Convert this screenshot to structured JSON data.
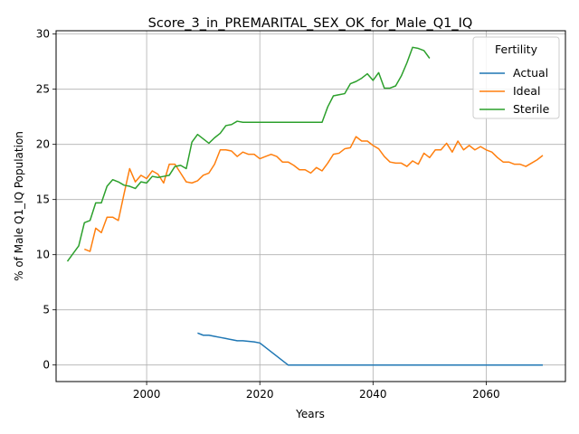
{
  "chart_data": {
    "type": "line",
    "title": "Score_3_in_PREMARITAL_SEX_OK_for_Male_Q1_IQ",
    "xlabel": "Years",
    "ylabel": "% of Male Q1_IQ Population",
    "xlim": [
      1984,
      2074
    ],
    "ylim": [
      -1.5,
      30.3
    ],
    "xticks": [
      2000,
      2020,
      2040,
      2060
    ],
    "yticks": [
      0,
      5,
      10,
      15,
      20,
      25,
      30
    ],
    "grid": true,
    "legend": {
      "title": "Fertility",
      "placement": "top-right"
    },
    "series": [
      {
        "name": "Actual",
        "color": "#1f77b4",
        "x": [
          2009,
          2010,
          2011,
          2012,
          2013,
          2014,
          2015,
          2016,
          2017,
          2018,
          2019,
          2020,
          2021,
          2022,
          2023,
          2024,
          2025,
          2030,
          2035,
          2040,
          2045,
          2050,
          2055,
          2060,
          2065,
          2070
        ],
        "y": [
          2.9,
          2.7,
          2.7,
          2.6,
          2.5,
          2.4,
          2.3,
          2.2,
          2.2,
          2.15,
          2.1,
          2.0,
          1.6,
          1.2,
          0.8,
          0.4,
          0.0,
          0.0,
          0.0,
          0.0,
          0.0,
          0.0,
          0.0,
          0.0,
          0.0,
          0.0
        ]
      },
      {
        "name": "Ideal",
        "color": "#ff7f0e",
        "x": [
          1989,
          1990,
          1991,
          1992,
          1993,
          1994,
          1995,
          1996,
          1997,
          1998,
          1999,
          2000,
          2001,
          2002,
          2003,
          2004,
          2005,
          2006,
          2007,
          2008,
          2009,
          2010,
          2011,
          2012,
          2013,
          2014,
          2015,
          2016,
          2017,
          2018,
          2019,
          2020,
          2021,
          2022,
          2023,
          2024,
          2025,
          2026,
          2027,
          2028,
          2029,
          2030,
          2031,
          2032,
          2033,
          2034,
          2035,
          2036,
          2037,
          2038,
          2039,
          2040,
          2041,
          2042,
          2043,
          2044,
          2045,
          2046,
          2047,
          2048,
          2049,
          2050,
          2051,
          2052,
          2053,
          2054,
          2055,
          2056,
          2057,
          2058,
          2059,
          2060,
          2061,
          2062,
          2063,
          2064,
          2065,
          2066,
          2067,
          2068,
          2069,
          2070
        ],
        "y": [
          10.5,
          10.3,
          12.4,
          12.0,
          13.4,
          13.4,
          13.1,
          15.5,
          17.8,
          16.6,
          17.2,
          16.9,
          17.6,
          17.3,
          16.5,
          18.2,
          18.2,
          17.4,
          16.6,
          16.5,
          16.7,
          17.2,
          17.4,
          18.2,
          19.5,
          19.5,
          19.4,
          18.9,
          19.3,
          19.1,
          19.1,
          18.7,
          18.9,
          19.1,
          18.9,
          18.4,
          18.4,
          18.1,
          17.7,
          17.7,
          17.4,
          17.9,
          17.6,
          18.3,
          19.1,
          19.2,
          19.6,
          19.7,
          20.7,
          20.3,
          20.3,
          19.9,
          19.6,
          18.9,
          18.4,
          18.3,
          18.3,
          18.0,
          18.5,
          18.2,
          19.2,
          18.8,
          19.5,
          19.5,
          20.1,
          19.3,
          20.3,
          19.5,
          19.9,
          19.5,
          19.8,
          19.5,
          19.3,
          18.8,
          18.4,
          18.4,
          18.2,
          18.2,
          18.0,
          18.3,
          18.6,
          19.0
        ]
      },
      {
        "name": "Sterile",
        "color": "#2ca02c",
        "x": [
          1986,
          1987,
          1988,
          1989,
          1990,
          1991,
          1992,
          1993,
          1994,
          1995,
          1996,
          1997,
          1998,
          1999,
          2000,
          2001,
          2002,
          2003,
          2004,
          2005,
          2006,
          2007,
          2008,
          2009,
          2010,
          2011,
          2012,
          2013,
          2014,
          2015,
          2016,
          2017,
          2018,
          2019,
          2020,
          2025,
          2030,
          2031,
          2032,
          2033,
          2034,
          2035,
          2036,
          2037,
          2038,
          2039,
          2040,
          2041,
          2042,
          2043,
          2044,
          2045,
          2046,
          2047,
          2048,
          2049,
          2050
        ],
        "y": [
          9.4,
          10.1,
          10.8,
          12.9,
          13.1,
          14.7,
          14.7,
          16.2,
          16.8,
          16.6,
          16.3,
          16.2,
          16.0,
          16.6,
          16.5,
          17.1,
          17.0,
          17.1,
          17.2,
          18.0,
          18.1,
          17.8,
          20.2,
          20.9,
          20.5,
          20.1,
          20.6,
          21.0,
          21.7,
          21.8,
          22.1,
          22.0,
          22.0,
          22.0,
          22.0,
          22.0,
          22.0,
          22.0,
          23.4,
          24.4,
          24.5,
          24.6,
          25.5,
          25.7,
          26.0,
          26.4,
          25.8,
          26.5,
          25.1,
          25.1,
          25.3,
          26.2,
          27.4,
          28.8,
          28.7,
          28.5,
          27.8
        ]
      }
    ]
  }
}
